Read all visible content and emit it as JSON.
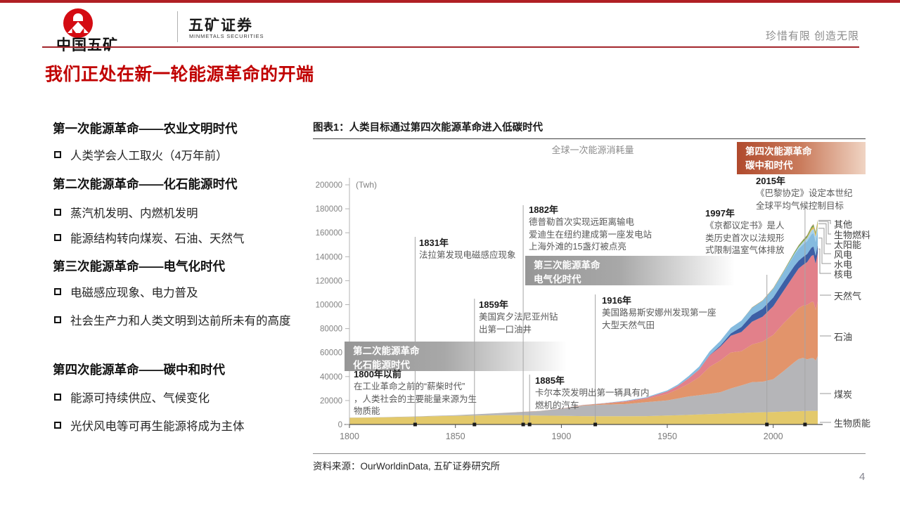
{
  "header": {
    "logo_cn": "中国五矿",
    "brand": "五矿证券",
    "brand_en": "MINMETALS SECURITIES",
    "slogan": "珍惜有限 创造无限"
  },
  "title": "我们正处在新一轮能源革命的开端",
  "colors": {
    "accent_red": "#c00000",
    "rule_red": "#a3262c",
    "era_red_start": "#b04a2d",
    "era_gray": "#969696"
  },
  "left_panel": {
    "sections": [
      {
        "heading": "第一次能源革命——农业文明时代",
        "bullets": [
          "人类学会人工取火（4万年前）"
        ]
      },
      {
        "heading": "第二次能源革命——化石能源时代",
        "bullets": [
          "蒸汽机发明、内燃机发明",
          "能源结构转向煤炭、石油、天然气"
        ]
      },
      {
        "heading": "第三次能源革命——电气化时代",
        "bullets": [
          "电磁感应现象、电力普及",
          "社会生产力和人类文明到达前所未有的高度"
        ]
      },
      {
        "heading": "第四次能源革命——碳中和时代",
        "bullets": [
          "能源可持续供应、气候变化",
          "光伏风电等可再生能源将成为主体"
        ]
      }
    ]
  },
  "figure": {
    "caption": "图表1：人类目标通过第四次能源革命进入低碳时代",
    "source": "资料来源：OurWorldinData, 五矿证券研究所",
    "page_number": "4"
  },
  "chart_data": {
    "type": "area",
    "title": "全球一次能源消耗量",
    "unit_label": "(Twh)",
    "xlabel": "",
    "ylabel": "",
    "ylim": [
      0,
      200000
    ],
    "ytick_step": 20000,
    "xticks": [
      1800,
      1850,
      1900,
      1950,
      2000
    ],
    "grid": false,
    "legend_position": "right",
    "legend": [
      "其他",
      "生物燃料",
      "太阳能",
      "风电",
      "水电",
      "核电",
      "天然气",
      "石油",
      "煤炭",
      "生物质能"
    ],
    "x": [
      1800,
      1810,
      1820,
      1830,
      1840,
      1850,
      1860,
      1870,
      1880,
      1890,
      1900,
      1910,
      1920,
      1930,
      1940,
      1950,
      1955,
      1960,
      1965,
      1970,
      1975,
      1980,
      1985,
      1990,
      1995,
      2000,
      2005,
      2010,
      2012,
      2014,
      2016,
      2018,
      2019,
      2020,
      2021
    ],
    "series": [
      {
        "name": "生物质能",
        "color": "#e3c96b",
        "values": [
          5600,
          5800,
          6100,
          6400,
          6900,
          7200,
          7500,
          7800,
          7800,
          7400,
          7300,
          7000,
          6900,
          6900,
          7000,
          7500,
          7700,
          8000,
          8300,
          8600,
          8900,
          9300,
          9600,
          10000,
          10200,
          10400,
          10700,
          11000,
          11100,
          11200,
          11300,
          11400,
          11400,
          11300,
          11500
        ]
      },
      {
        "name": "煤炭",
        "color": "#b5b5b8",
        "values": [
          100,
          130,
          160,
          260,
          360,
          570,
          1060,
          1640,
          2540,
          3860,
          5730,
          8660,
          9630,
          10130,
          11590,
          12600,
          14000,
          15400,
          16100,
          17000,
          18000,
          20800,
          23000,
          25300,
          25500,
          27400,
          34000,
          41000,
          43500,
          44400,
          43000,
          44000,
          43800,
          42100,
          45500
        ]
      },
      {
        "name": "石油",
        "color": "#e2946b",
        "values": [
          0,
          0,
          0,
          0,
          0,
          0,
          2,
          9,
          33,
          90,
          180,
          400,
          890,
          1760,
          2650,
          5440,
          7700,
          10500,
          15000,
          22500,
          26500,
          30000,
          28500,
          31500,
          33500,
          36900,
          40000,
          41500,
          42500,
          43500,
          45500,
          46800,
          47000,
          42300,
          45500
        ]
      },
      {
        "name": "天然气",
        "color": "#e2808a",
        "values": [
          0,
          0,
          0,
          0,
          0,
          0,
          0,
          0,
          10,
          36,
          64,
          140,
          220,
          570,
          870,
          2000,
          2800,
          4500,
          6300,
          9600,
          11400,
          13900,
          16100,
          19000,
          20800,
          23900,
          27200,
          31600,
          33100,
          34000,
          35700,
          38500,
          39300,
          38500,
          40500
        ]
      },
      {
        "name": "核电",
        "color": "#3d5fa5",
        "values": [
          0,
          0,
          0,
          0,
          0,
          0,
          0,
          0,
          0,
          0,
          0,
          0,
          0,
          0,
          0,
          0,
          0,
          0,
          70,
          220,
          1050,
          2020,
          4230,
          5680,
          6590,
          7320,
          7610,
          7370,
          6500,
          6610,
          6720,
          6860,
          7070,
          6790,
          7030
        ]
      },
      {
        "name": "水电",
        "color": "#85bbdf",
        "values": [
          0,
          0,
          0,
          0,
          0,
          0,
          0,
          0,
          0,
          0,
          50,
          130,
          190,
          390,
          570,
          890,
          1200,
          1900,
          2500,
          3100,
          3900,
          4700,
          5300,
          5900,
          6600,
          7200,
          7900,
          9300,
          9900,
          10400,
          10800,
          11100,
          11300,
          11500,
          11200
        ]
      },
      {
        "name": "风电",
        "color": "#a8d2ea",
        "values": [
          0,
          0,
          0,
          0,
          0,
          0,
          0,
          0,
          0,
          0,
          0,
          0,
          0,
          0,
          0,
          0,
          0,
          0,
          0,
          0,
          0,
          0,
          0,
          10,
          20,
          80,
          280,
          900,
          1400,
          1900,
          2500,
          3300,
          3700,
          4200,
          4900
        ]
      },
      {
        "name": "太阳能",
        "color": "#eeb544",
        "values": [
          0,
          0,
          0,
          0,
          0,
          0,
          0,
          0,
          0,
          0,
          0,
          0,
          0,
          0,
          0,
          0,
          0,
          0,
          0,
          0,
          0,
          0,
          0,
          0,
          0,
          0,
          10,
          90,
          260,
          500,
          850,
          1500,
          1800,
          2200,
          2700
        ]
      },
      {
        "name": "生物燃料",
        "color": "#45a247",
        "values": [
          0,
          0,
          0,
          0,
          0,
          0,
          0,
          0,
          0,
          0,
          0,
          0,
          0,
          0,
          0,
          0,
          0,
          0,
          0,
          0,
          0,
          0,
          0,
          100,
          150,
          230,
          420,
          750,
          850,
          950,
          1000,
          1100,
          1140,
          1070,
          1100
        ]
      },
      {
        "name": "其他",
        "color": "#bf9569",
        "values": [
          0,
          0,
          0,
          0,
          0,
          0,
          0,
          0,
          0,
          0,
          0,
          0,
          0,
          0,
          0,
          0,
          0,
          0,
          0,
          0,
          0,
          0,
          0,
          300,
          350,
          400,
          450,
          550,
          600,
          650,
          700,
          750,
          800,
          820,
          850
        ]
      }
    ],
    "era_boxes": [
      {
        "line1": "第二次能源革命",
        "line2": "化石能源时代"
      },
      {
        "line1": "第三次能源革命",
        "line2": "电气化时代"
      },
      {
        "line1": "第四次能源革命",
        "line2": "碳中和时代"
      }
    ],
    "annotations": [
      {
        "title": "1800年以前",
        "lines": [
          "在工业革命之前的“薪柴时代”",
          "，人类社会的主要能量来源为生",
          "物质能"
        ]
      },
      {
        "title": "1831年",
        "year": 1831,
        "lines": [
          "法拉第发现电磁感应现象"
        ]
      },
      {
        "title": "1859年",
        "year": 1859,
        "lines": [
          "美国宾夕法尼亚州钻",
          "出第一口油井"
        ]
      },
      {
        "title": "1882年",
        "year": 1882,
        "lines": [
          "德普勒首次实现远距离输电",
          "爱迪生在纽约建成第一座发电站",
          "上海外滩的15盏灯被点亮"
        ]
      },
      {
        "title": "1885年",
        "year": 1885,
        "lines": [
          "卡尔本茨发明出第一辆具有内",
          "燃机的汽车"
        ]
      },
      {
        "title": "1916年",
        "year": 1916,
        "lines": [
          "美国路易斯安娜州发现第一座",
          "大型天然气田"
        ]
      },
      {
        "title": "1997年",
        "year": 1997,
        "lines": [
          "《京都议定书》是人",
          "类历史首次以法规形",
          "式限制温室气体排放"
        ]
      },
      {
        "title": "2015年",
        "year": 2015,
        "lines": [
          "《巴黎协定》设定本世纪",
          "全球平均气候控制目标"
        ]
      }
    ]
  }
}
